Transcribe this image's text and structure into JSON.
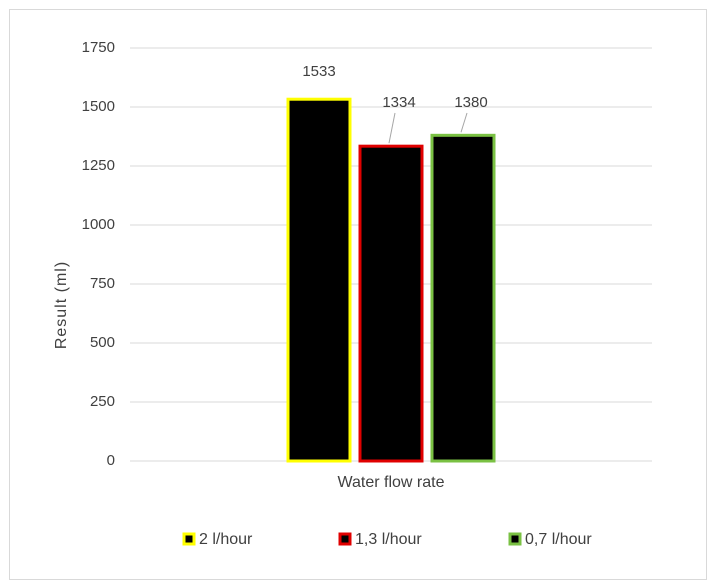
{
  "chart_data": {
    "type": "bar",
    "categories": [
      "Water flow rate"
    ],
    "series": [
      {
        "name": "2 l/hour",
        "color": "#ffff00",
        "values": [
          1533
        ]
      },
      {
        "name": "1,3 l/hour",
        "color": "#e00000",
        "values": [
          1334
        ]
      },
      {
        "name": "0,7 l/hour",
        "color": "#7ac143",
        "values": [
          1380
        ]
      }
    ],
    "fill": "#000000",
    "ylabel": "Result  (ml)",
    "ylim": [
      0,
      1750
    ],
    "yticks": [
      0,
      250,
      500,
      750,
      1000,
      1250,
      1500,
      1750
    ],
    "grid": true,
    "legend": "bottom"
  }
}
